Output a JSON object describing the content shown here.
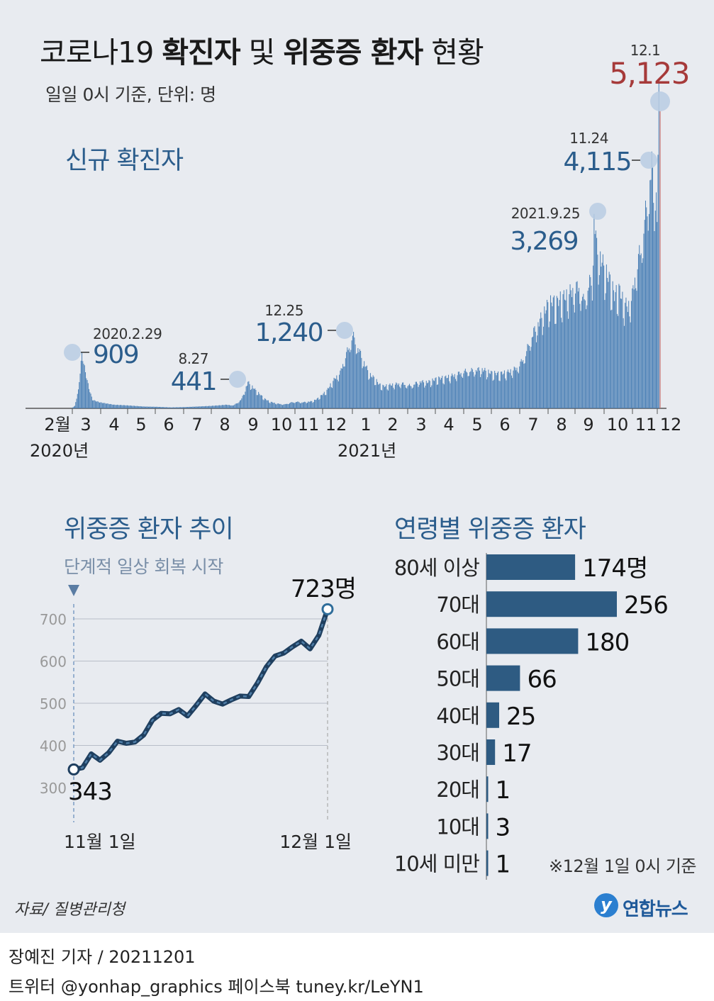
{
  "header": {
    "title_part1": "코로나19 ",
    "title_part2": "확진자",
    "title_part3": " 및 ",
    "title_part4": "위중증 환자",
    "title_part5": " 현황",
    "subtitle": "일일 0시 기준,  단위: 명"
  },
  "sections": {
    "new_cases": "신규 확진자",
    "severe_trend": "위중증 환자 추이",
    "severe_by_age": "연령별 위중증 환자"
  },
  "colors": {
    "accent": "#2b5d8c",
    "bar": "#4a7fb5",
    "highlight": "#a63a3a",
    "marker": "#b9cde3",
    "panel_bg": "#e8ebf0",
    "age_bar": "#2e5b82"
  },
  "chart_data": [
    {
      "type": "bar",
      "title": "신규 확진자",
      "x_ticks": [
        "2월",
        "3",
        "4",
        "5",
        "6",
        "7",
        "8",
        "9",
        "10",
        "11",
        "12",
        "1",
        "2",
        "3",
        "4",
        "5",
        "6",
        "7",
        "8",
        "9",
        "10",
        "11",
        "12"
      ],
      "year_labels": [
        "2020년",
        "2021년"
      ],
      "daily_profile": [
        [
          0,
          0
        ],
        [
          8,
          0
        ],
        [
          12,
          40
        ],
        [
          16,
          300
        ],
        [
          20,
          909
        ],
        [
          24,
          600
        ],
        [
          28,
          330
        ],
        [
          32,
          140
        ],
        [
          40,
          100
        ],
        [
          48,
          80
        ],
        [
          56,
          60
        ],
        [
          70,
          50
        ],
        [
          90,
          30
        ],
        [
          105,
          25
        ],
        [
          120,
          15
        ],
        [
          135,
          20
        ],
        [
          150,
          30
        ],
        [
          165,
          40
        ],
        [
          175,
          50
        ],
        [
          183,
          60
        ],
        [
          190,
          45
        ],
        [
          195,
          90
        ],
        [
          200,
          160
        ],
        [
          203,
          280
        ],
        [
          207,
          441
        ],
        [
          211,
          380
        ],
        [
          216,
          300
        ],
        [
          221,
          230
        ],
        [
          226,
          160
        ],
        [
          232,
          110
        ],
        [
          240,
          80
        ],
        [
          248,
          65
        ],
        [
          256,
          100
        ],
        [
          262,
          110
        ],
        [
          268,
          100
        ],
        [
          274,
          110
        ],
        [
          280,
          120
        ],
        [
          285,
          160
        ],
        [
          290,
          220
        ],
        [
          296,
          300
        ],
        [
          301,
          420
        ],
        [
          306,
          520
        ],
        [
          311,
          600
        ],
        [
          316,
          850
        ],
        [
          320,
          1000
        ],
        [
          325,
          1240
        ],
        [
          330,
          1060
        ],
        [
          335,
          880
        ],
        [
          340,
          700
        ],
        [
          345,
          560
        ],
        [
          350,
          500
        ],
        [
          355,
          400
        ],
        [
          360,
          370
        ],
        [
          370,
          400
        ],
        [
          380,
          420
        ],
        [
          390,
          380
        ],
        [
          400,
          450
        ],
        [
          410,
          440
        ],
        [
          420,
          500
        ],
        [
          430,
          520
        ],
        [
          440,
          560
        ],
        [
          450,
          620
        ],
        [
          460,
          640
        ],
        [
          470,
          660
        ],
        [
          480,
          600
        ],
        [
          490,
          580
        ],
        [
          500,
          610
        ],
        [
          510,
          680
        ],
        [
          515,
          780
        ],
        [
          520,
          920
        ],
        [
          525,
          1150
        ],
        [
          530,
          1320
        ],
        [
          535,
          1450
        ],
        [
          540,
          1600
        ],
        [
          545,
          1740
        ],
        [
          550,
          1800
        ],
        [
          555,
          1780
        ],
        [
          560,
          1850
        ],
        [
          565,
          1880
        ],
        [
          570,
          1950
        ],
        [
          575,
          2000
        ],
        [
          580,
          2060
        ],
        [
          585,
          1800
        ],
        [
          590,
          2050
        ],
        [
          595,
          2200
        ],
        [
          597,
          3269
        ],
        [
          600,
          2700
        ],
        [
          605,
          2500
        ],
        [
          610,
          2300
        ],
        [
          615,
          2150
        ],
        [
          620,
          1900
        ],
        [
          625,
          2000
        ],
        [
          630,
          1800
        ],
        [
          635,
          1700
        ],
        [
          640,
          1900
        ],
        [
          645,
          2400
        ],
        [
          650,
          2700
        ],
        [
          654,
          3200
        ],
        [
          657,
          3400
        ],
        [
          660,
          3900
        ],
        [
          662,
          4115
        ],
        [
          664,
          3600
        ],
        [
          666,
          3800
        ],
        [
          668,
          3300
        ],
        [
          670,
          5123
        ]
      ],
      "peaks": [
        {
          "date": "2020.2.29",
          "value": 909,
          "label": "909"
        },
        {
          "date": "8.27",
          "value": 441,
          "label": "441"
        },
        {
          "date": "12.25",
          "value": 1240,
          "label": "1,240"
        },
        {
          "date": "2021.9.25",
          "value": 3269,
          "label": "3,269"
        },
        {
          "date": "11.24",
          "value": 4115,
          "label": "4,115"
        },
        {
          "date": "12.1",
          "value": 5123,
          "label": "5,123"
        }
      ],
      "ylim": [
        0,
        5123
      ]
    },
    {
      "type": "line",
      "title": "위중증 환자 추이",
      "annotation": "단계적 일상 회복 시작",
      "y_ticks": [
        300,
        400,
        500,
        600,
        700
      ],
      "ylim": [
        300,
        740
      ],
      "x_labels": [
        "11월 1일",
        "12월 1일"
      ],
      "values": [
        343,
        347,
        380,
        365,
        383,
        410,
        405,
        408,
        425,
        460,
        476,
        475,
        485,
        470,
        495,
        522,
        505,
        498,
        508,
        517,
        516,
        548,
        586,
        612,
        619,
        634,
        647,
        629,
        661,
        723
      ],
      "start_label": "343",
      "end_label": "723명"
    },
    {
      "type": "bar",
      "orientation": "horizontal",
      "title": "연령별 위중증 환자",
      "categories": [
        "80세 이상",
        "70대",
        "60대",
        "50대",
        "40대",
        "30대",
        "20대",
        "10대",
        "10세 미만"
      ],
      "values": [
        174,
        256,
        180,
        66,
        25,
        17,
        1,
        3,
        1
      ],
      "value_labels": [
        "174명",
        "256",
        "180",
        "66",
        "25",
        "17",
        "1",
        "3",
        "1"
      ],
      "note": "※12월 1일 0시 기준"
    }
  ],
  "footer": {
    "source": "자료/ 질병관리청",
    "logo_mark": "y",
    "logo_text": "연합뉴스",
    "credit": "장예진 기자 / 20211201",
    "social": "트위터 @yonhap_graphics  페이스북 tuney.kr/LeYN1"
  }
}
